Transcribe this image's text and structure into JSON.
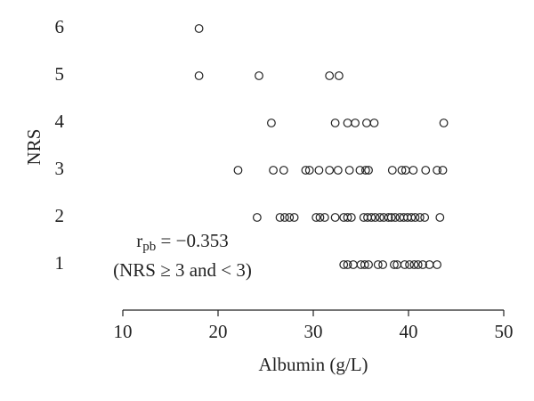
{
  "chart_data": {
    "type": "scatter",
    "x_label": "Albumin (g/L)",
    "y_label": "NRS",
    "annotation": {
      "symbol": "r",
      "subscript": "pb",
      "text": " = −0.353",
      "note": "(NRS ≥ 3 and < 3)"
    },
    "xlim": [
      10,
      50
    ],
    "xticks": [
      10,
      20,
      30,
      40,
      50
    ],
    "ylim": [
      0,
      6.4
    ],
    "yticks": [
      1,
      2,
      3,
      4,
      5,
      6
    ],
    "color": "#222222",
    "marker": "open-circle",
    "x": [
      18,
      18,
      24.3,
      31.7,
      32.7,
      25.6,
      32.3,
      33.6,
      34.4,
      35.6,
      36.4,
      43.7,
      22.1,
      25.8,
      26.9,
      29.2,
      29.6,
      30.6,
      31.7,
      32.6,
      33.8,
      34.9,
      35.5,
      35.8,
      38.3,
      39.3,
      39.7,
      40.5,
      41.8,
      43.0,
      43.6,
      24.1,
      26.5,
      27.0,
      27.5,
      28.0,
      30.3,
      30.7,
      31.2,
      32.3,
      33.2,
      33.6,
      34.0,
      35.3,
      35.7,
      36.1,
      36.5,
      37.0,
      37.4,
      37.9,
      38.2,
      38.6,
      39.1,
      39.5,
      39.9,
      40.3,
      40.7,
      41.2,
      41.7,
      43.3,
      33.2,
      33.6,
      34.2,
      35.0,
      35.4,
      35.8,
      36.8,
      37.3,
      38.5,
      38.8,
      39.6,
      40.1,
      40.6,
      41.0,
      41.5,
      42.2,
      43.0
    ],
    "y": [
      6,
      5,
      5,
      5,
      5,
      4,
      4,
      4,
      4,
      4,
      4,
      4,
      3,
      3,
      3,
      3,
      3,
      3,
      3,
      3,
      3,
      3,
      3,
      3,
      3,
      3,
      3,
      3,
      3,
      3,
      3,
      2,
      2,
      2,
      2,
      2,
      2,
      2,
      2,
      2,
      2,
      2,
      2,
      2,
      2,
      2,
      2,
      2,
      2,
      2,
      2,
      2,
      2,
      2,
      2,
      2,
      2,
      2,
      2,
      2,
      1,
      1,
      1,
      1,
      1,
      1,
      1,
      1,
      1,
      1,
      1,
      1,
      1,
      1,
      1,
      1,
      1
    ]
  }
}
